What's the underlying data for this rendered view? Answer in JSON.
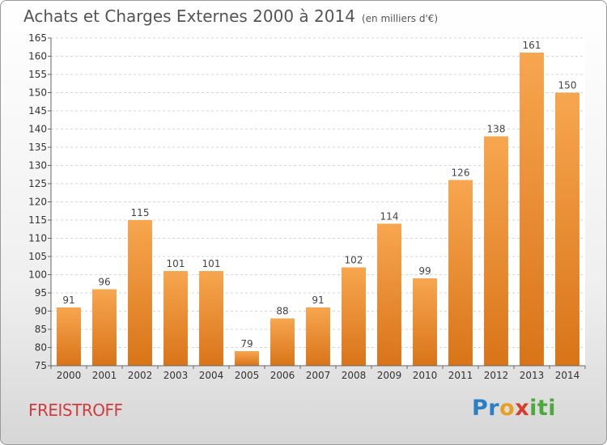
{
  "header": {
    "title": "Achats et Charges Externes 2000 à 2014",
    "subtitle": "(en milliers d'€)"
  },
  "footer": {
    "commune": "FREISTROFF",
    "logo_letters": [
      "P",
      "r",
      "o",
      "x",
      "i",
      "ti"
    ]
  },
  "colors": {
    "bar_top": "#f7a650",
    "bar_bottom": "#d97418",
    "title": "#555555",
    "commune": "#d23c3c"
  },
  "chart_data": {
    "type": "bar",
    "title": "Achats et Charges Externes 2000 à 2014",
    "subtitle": "(en milliers d'€)",
    "categories": [
      "2000",
      "2001",
      "2002",
      "2003",
      "2004",
      "2005",
      "2006",
      "2007",
      "2008",
      "2009",
      "2010",
      "2011",
      "2012",
      "2013",
      "2014"
    ],
    "values": [
      91,
      96,
      115,
      101,
      101,
      79,
      88,
      91,
      102,
      114,
      99,
      126,
      138,
      161,
      150
    ],
    "ylim": [
      75,
      165
    ],
    "ytick_step": 5,
    "grid": true,
    "legend": "none"
  }
}
